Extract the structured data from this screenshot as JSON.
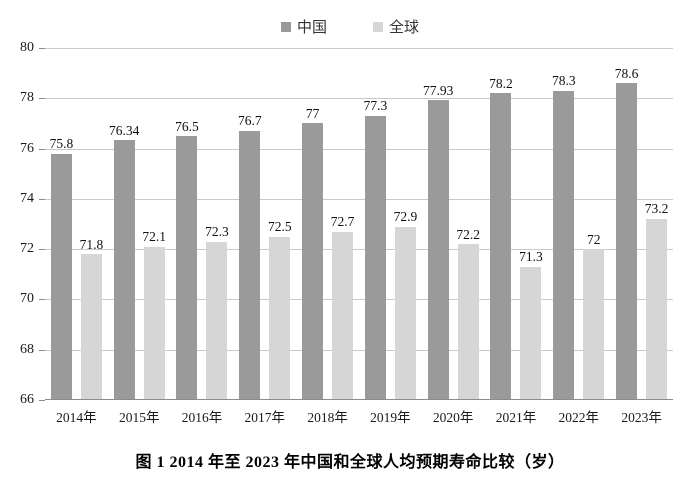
{
  "caption": "图 1  2014 年至 2023 年中国和全球人均预期寿命比较（岁）",
  "colors": {
    "china_bar": "#9a9a9a",
    "global_bar": "#d6d6d6",
    "gridline": "#c9c9c9",
    "axis": "#8c8c8c"
  },
  "chart_data": {
    "type": "bar",
    "title": "图 1  2014 年至 2023 年中国和全球人均预期寿命比较（岁）",
    "categories": [
      "2014年",
      "2015年",
      "2016年",
      "2017年",
      "2018年",
      "2019年",
      "2020年",
      "2021年",
      "2022年",
      "2023年"
    ],
    "series": [
      {
        "name": "中国",
        "color": "#9a9a9a",
        "values": [
          75.8,
          76.34,
          76.5,
          76.7,
          77,
          77.3,
          77.93,
          78.2,
          78.3,
          78.6
        ]
      },
      {
        "name": "全球",
        "color": "#d6d6d6",
        "values": [
          71.8,
          72.1,
          72.3,
          72.5,
          72.7,
          72.9,
          72.2,
          71.3,
          72,
          73.2
        ]
      }
    ],
    "xlabel": "",
    "ylabel": "",
    "ylim": [
      66,
      80
    ],
    "ytick_step": 2,
    "yticks": [
      66,
      68,
      70,
      72,
      74,
      76,
      78,
      80
    ],
    "grid": true,
    "data_labels": true,
    "legend_position": "top"
  }
}
